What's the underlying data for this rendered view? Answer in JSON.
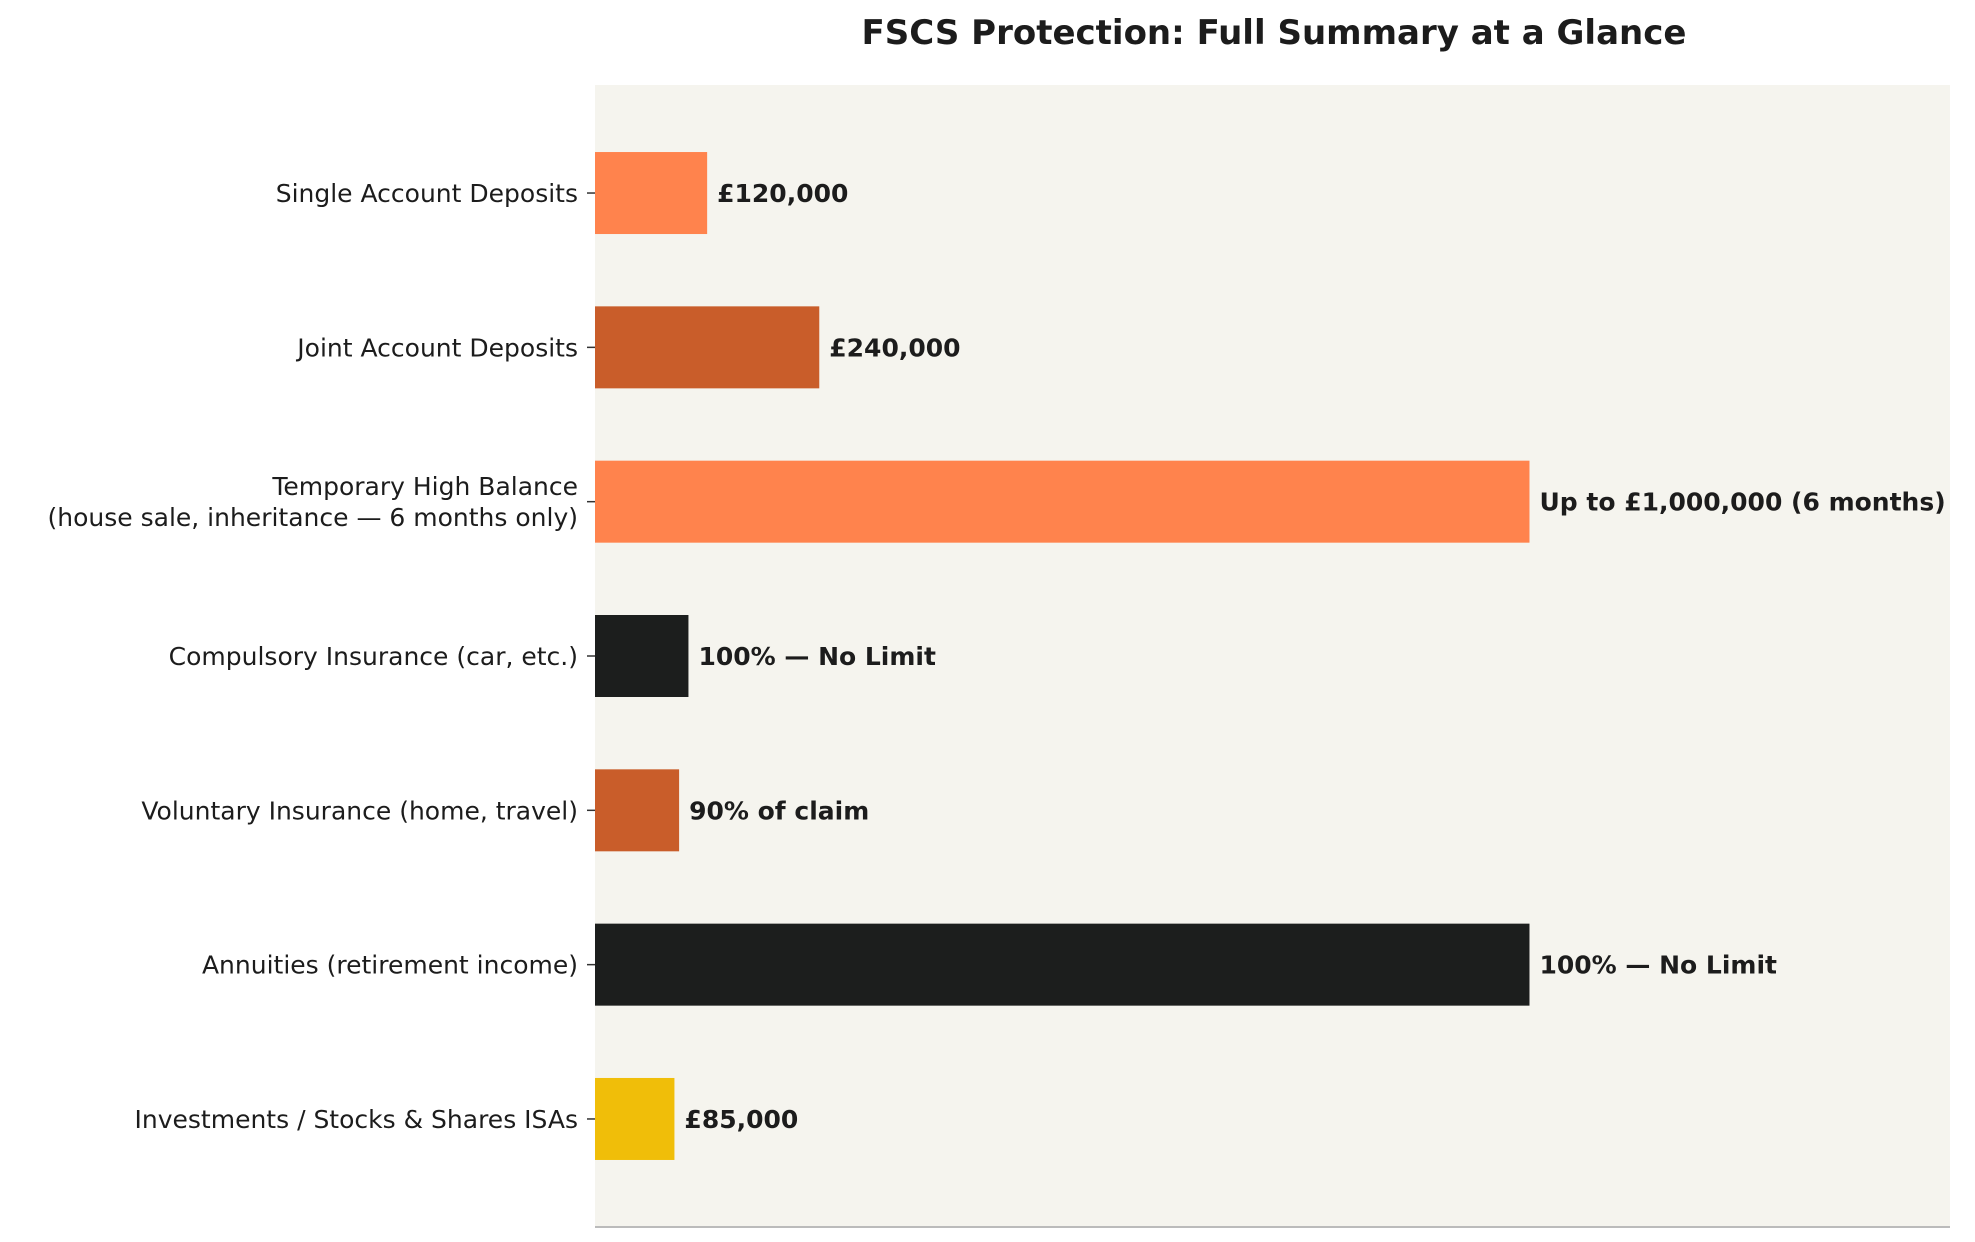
{
  "chart_data": {
    "type": "bar",
    "orientation": "horizontal",
    "title": "FSCS Protection: Full Summary at a Glance",
    "xlabel": "",
    "ylabel": "",
    "xlim": [
      0,
      1450
    ],
    "grid": false,
    "legend": "none",
    "categories": [
      [
        "Single Account Deposits"
      ],
      [
        "Joint Account Deposits"
      ],
      [
        "Temporary High Balance",
        "(house sale, inheritance — 6 months only)"
      ],
      [
        "Compulsory Insurance (car, etc.)"
      ],
      [
        "Voluntary Insurance (home, travel)"
      ],
      [
        "Annuities (retirement income)"
      ],
      [
        "Investments / Stocks & Shares ISAs"
      ]
    ],
    "values": [
      120,
      240,
      1000,
      100,
      90,
      1000,
      85
    ],
    "value_units": "£ thousands (display scale)",
    "data_labels": [
      "£120,000",
      "£240,000",
      "Up to £1,000,000 (6 months)",
      "100% — No Limit",
      "90% of claim",
      "100% — No Limit",
      "£85,000"
    ],
    "colors": [
      "#ff834d",
      "#c95d2a",
      "#ff834d",
      "#1c1e1d",
      "#c95d2a",
      "#1c1e1d",
      "#f0be09"
    ],
    "plot_background": "#f5f4ee",
    "axis_color": "#bbbbbb"
  }
}
